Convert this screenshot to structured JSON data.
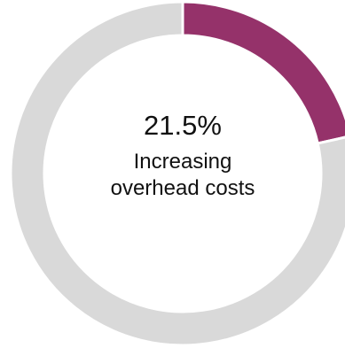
{
  "chart_data": {
    "type": "pie",
    "style": "donut",
    "slices": [
      {
        "label": "Increasing overhead costs",
        "value": 21.5,
        "color": "#95326a"
      },
      {
        "label": "",
        "value": 78.5,
        "color": "#d9d9d9"
      }
    ],
    "center_value": "21.5%",
    "center_text": "Increasing overhead costs"
  }
}
